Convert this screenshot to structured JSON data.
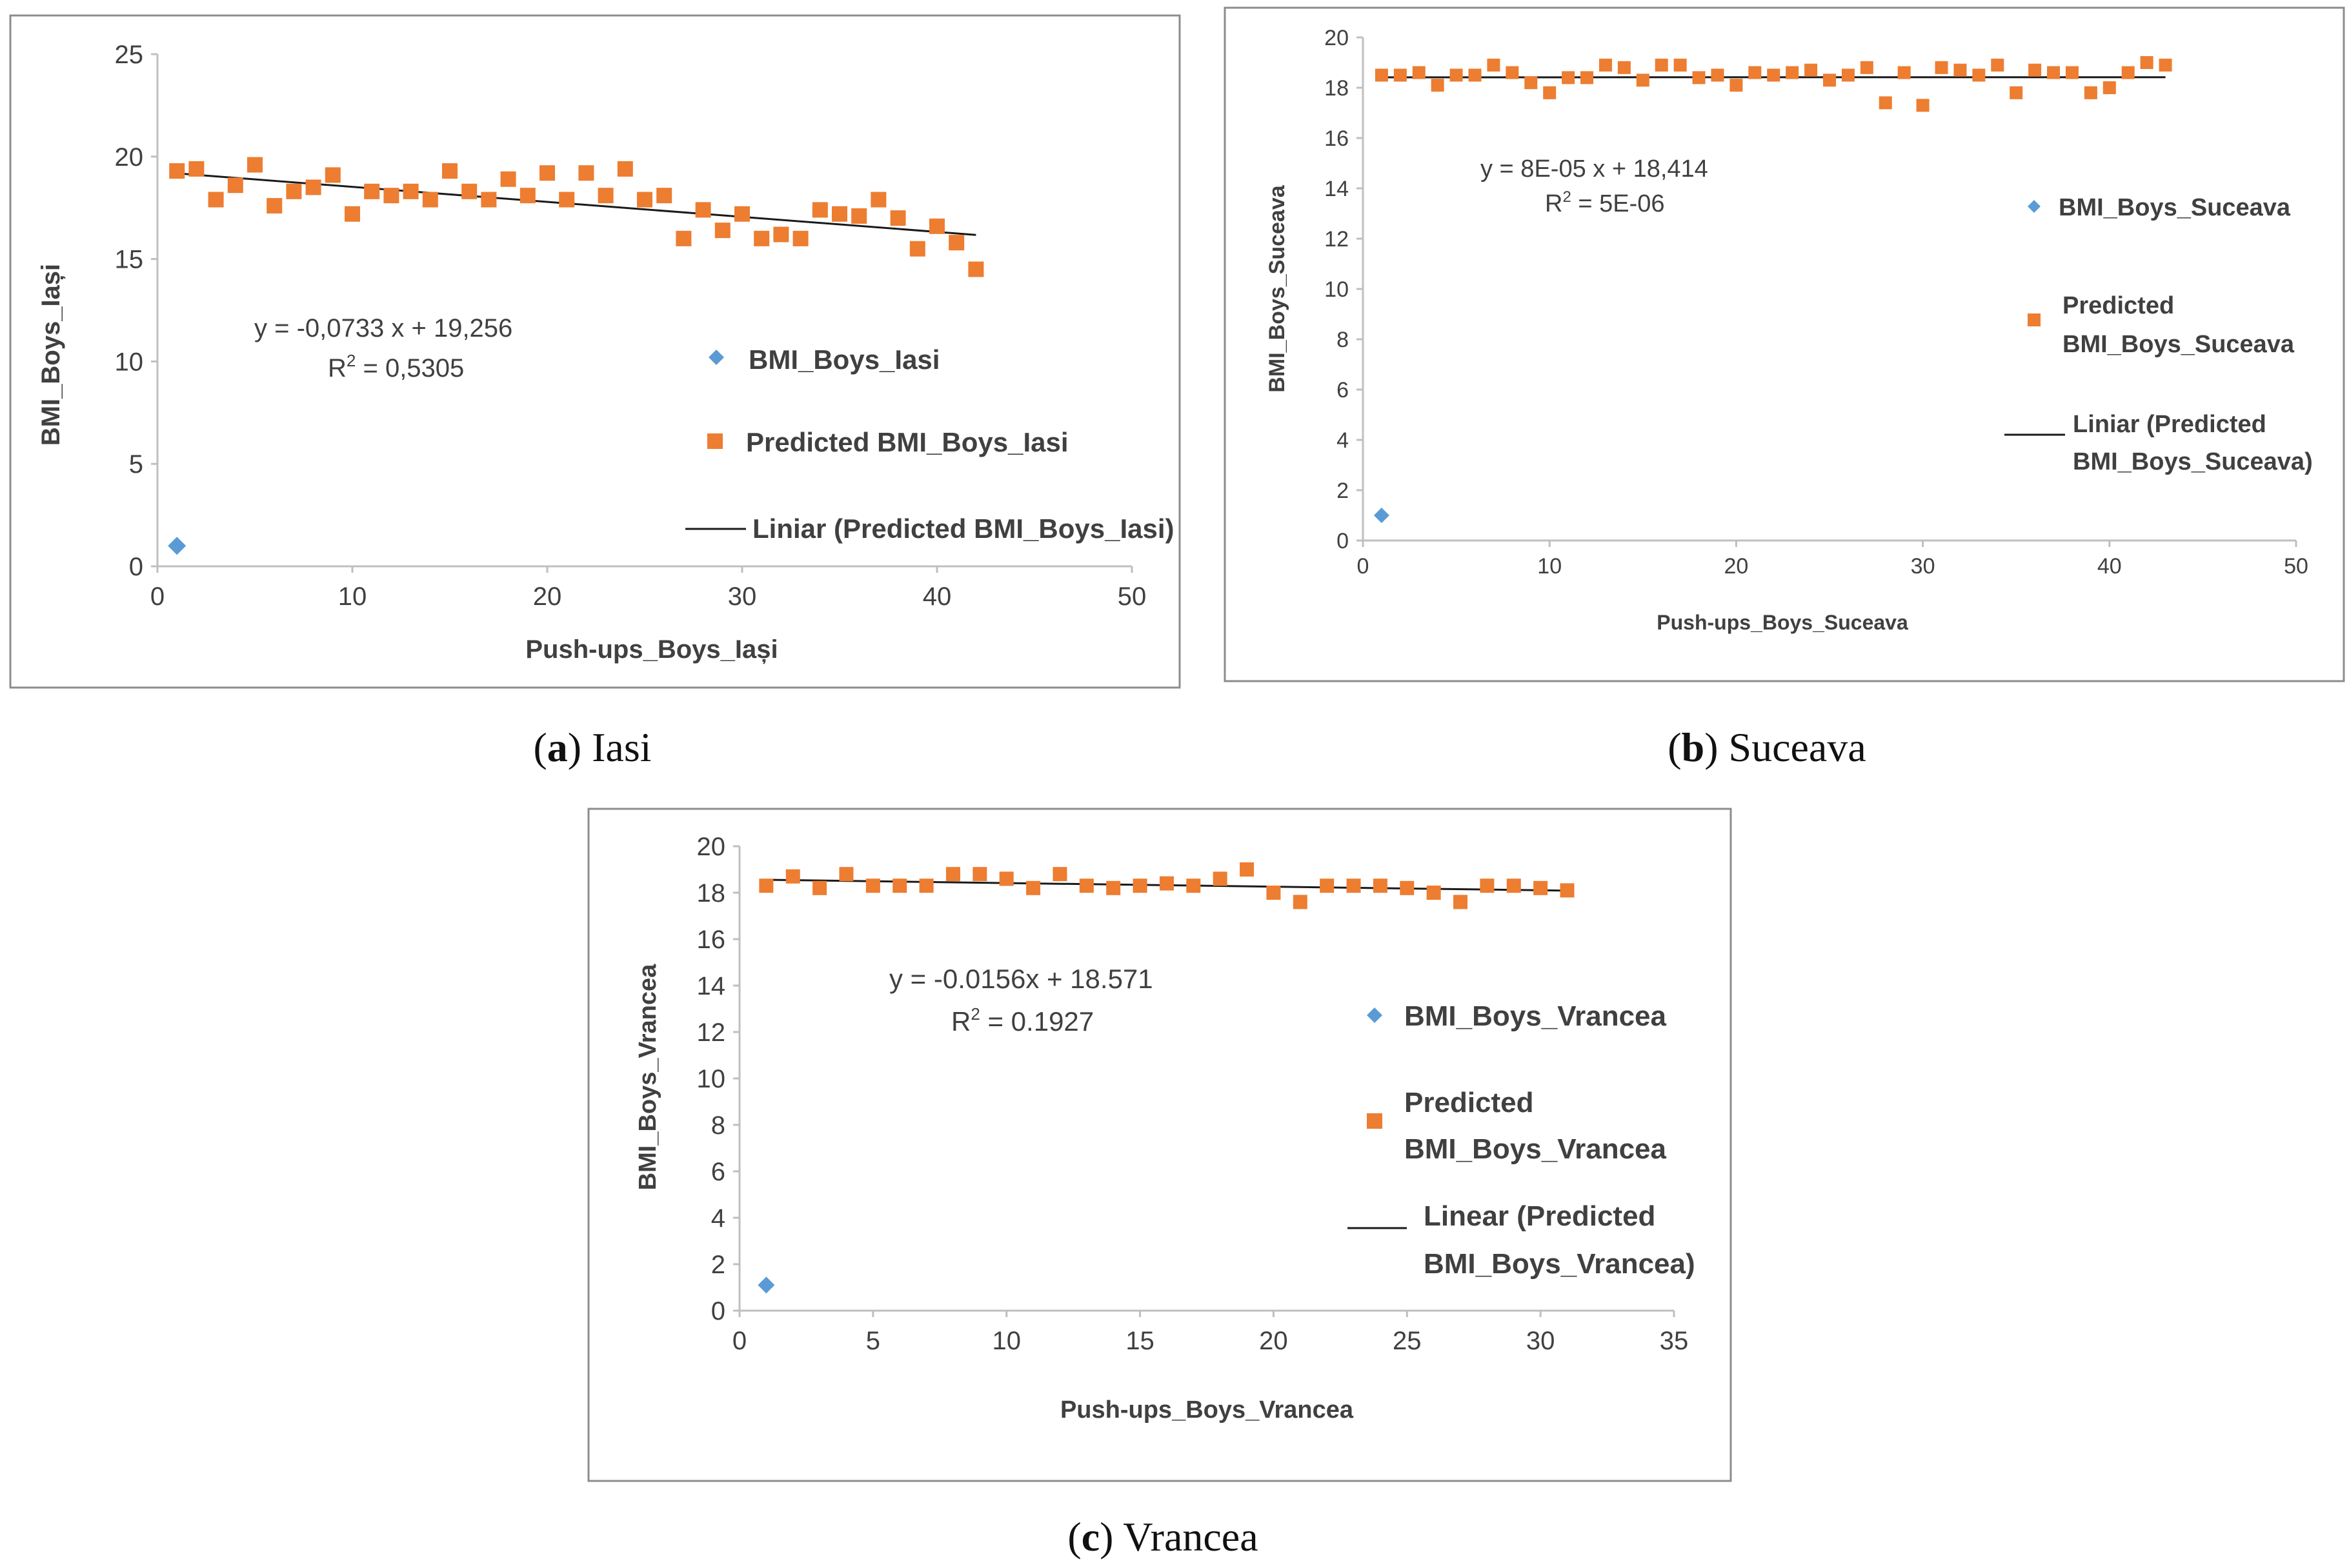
{
  "colors": {
    "observed": "#5b9bd5",
    "predicted": "#ed7d31",
    "trend": "#1a1a1a",
    "axis": "#bfbfbf",
    "frame": "#8c8c8c",
    "text": "#404040"
  },
  "chart_data": [
    {
      "type": "scatter",
      "panel": "a",
      "caption_letter": "a",
      "caption_text": "Iasi",
      "xlabel": "Push-ups_Boys_Iași",
      "ylabel": "BMI_Boys_Iași",
      "xlim": [
        0,
        50
      ],
      "ylim": [
        0,
        25
      ],
      "xticks": [
        0,
        10,
        20,
        30,
        40,
        50
      ],
      "yticks": [
        0,
        5,
        10,
        15,
        20,
        25
      ],
      "equation": "y = -0,0733  x + 19,256",
      "r2_prefix": "R",
      "r2_value": " = 0,5305",
      "trend": {
        "slope": -0.0733,
        "intercept": 19.256,
        "x_range": [
          1,
          42
        ]
      },
      "series": [
        {
          "name": "BMI_Boys_Iasi",
          "marker": "diamond",
          "points": [
            [
              1,
              1.0
            ]
          ]
        },
        {
          "name": "Predicted BMI_Boys_Iasi",
          "marker": "square",
          "points": [
            [
              1,
              19.3
            ],
            [
              2,
              19.4
            ],
            [
              3,
              17.9
            ],
            [
              4,
              18.6
            ],
            [
              5,
              19.6
            ],
            [
              6,
              17.6
            ],
            [
              7,
              18.3
            ],
            [
              8,
              18.5
            ],
            [
              9,
              19.1
            ],
            [
              10,
              17.2
            ],
            [
              11,
              18.3
            ],
            [
              12,
              18.1
            ],
            [
              13,
              18.3
            ],
            [
              14,
              17.9
            ],
            [
              15,
              19.3
            ],
            [
              16,
              18.3
            ],
            [
              17,
              17.9
            ],
            [
              18,
              18.9
            ],
            [
              19,
              18.1
            ],
            [
              20,
              19.2
            ],
            [
              21,
              17.9
            ],
            [
              22,
              19.2
            ],
            [
              23,
              18.1
            ],
            [
              24,
              19.4
            ],
            [
              25,
              17.9
            ],
            [
              26,
              18.1
            ],
            [
              27,
              16.0
            ],
            [
              28,
              17.4
            ],
            [
              29,
              16.4
            ],
            [
              30,
              17.2
            ],
            [
              31,
              16.0
            ],
            [
              32,
              16.2
            ],
            [
              33,
              16.0
            ],
            [
              34,
              17.4
            ],
            [
              35,
              17.2
            ],
            [
              36,
              17.1
            ],
            [
              37,
              17.9
            ],
            [
              38,
              17.0
            ],
            [
              39,
              15.5
            ],
            [
              40,
              16.6
            ],
            [
              41,
              15.8
            ],
            [
              42,
              14.5
            ]
          ]
        }
      ],
      "legend": {
        "observed": "BMI_Boys_Iasi",
        "predicted": "Predicted BMI_Boys_Iasi",
        "trend": "Liniar (Predicted BMI_Boys_Iasi)"
      }
    },
    {
      "type": "scatter",
      "panel": "b",
      "caption_letter": "b",
      "caption_text": "Suceava",
      "xlabel": "Push-ups_Boys_Suceava",
      "ylabel": "BMI_Boys_Suceava",
      "xlim": [
        0,
        50
      ],
      "ylim": [
        0,
        20
      ],
      "xticks": [
        0,
        10,
        20,
        30,
        40,
        50
      ],
      "yticks": [
        0,
        2,
        4,
        6,
        8,
        10,
        12,
        14,
        16,
        18,
        20
      ],
      "equation": "y = 8E-05  x + 18,414",
      "r2_prefix": "R",
      "r2_value": " = 5E-06",
      "trend": {
        "slope": 8e-05,
        "intercept": 18.414,
        "x_range": [
          1,
          43
        ]
      },
      "series": [
        {
          "name": "BMI_Boys_Suceava",
          "marker": "diamond",
          "points": [
            [
              1,
              1.0
            ]
          ]
        },
        {
          "name": "Predicted BMI_Boys_Suceava",
          "marker": "square",
          "points": [
            [
              1,
              18.5
            ],
            [
              2,
              18.5
            ],
            [
              3,
              18.6
            ],
            [
              4,
              18.1
            ],
            [
              5,
              18.5
            ],
            [
              6,
              18.5
            ],
            [
              7,
              18.9
            ],
            [
              8,
              18.6
            ],
            [
              9,
              18.2
            ],
            [
              10,
              17.8
            ],
            [
              11,
              18.4
            ],
            [
              12,
              18.4
            ],
            [
              13,
              18.9
            ],
            [
              14,
              18.8
            ],
            [
              15,
              18.3
            ],
            [
              16,
              18.9
            ],
            [
              17,
              18.9
            ],
            [
              18,
              18.4
            ],
            [
              19,
              18.5
            ],
            [
              20,
              18.1
            ],
            [
              21,
              18.6
            ],
            [
              22,
              18.5
            ],
            [
              23,
              18.6
            ],
            [
              24,
              18.7
            ],
            [
              25,
              18.3
            ],
            [
              26,
              18.5
            ],
            [
              27,
              18.8
            ],
            [
              28,
              17.4
            ],
            [
              29,
              18.6
            ],
            [
              30,
              17.3
            ],
            [
              31,
              18.8
            ],
            [
              32,
              18.7
            ],
            [
              33,
              18.5
            ],
            [
              34,
              18.9
            ],
            [
              35,
              17.8
            ],
            [
              36,
              18.7
            ],
            [
              37,
              18.6
            ],
            [
              38,
              18.6
            ],
            [
              39,
              17.8
            ],
            [
              40,
              18.0
            ],
            [
              41,
              18.6
            ],
            [
              42,
              19.0
            ],
            [
              43,
              18.9
            ]
          ]
        }
      ],
      "legend": {
        "observed": "BMI_Boys_Suceava",
        "predicted_line1": "Predicted",
        "predicted_line2": "BMI_Boys_Suceava",
        "trend_line1": "Liniar (Predicted",
        "trend_line2": "BMI_Boys_Suceava)"
      }
    },
    {
      "type": "scatter",
      "panel": "c",
      "caption_letter": "c",
      "caption_text": "Vrancea",
      "xlabel": "Push-ups_Boys_Vrancea",
      "ylabel": "BMI_Boys_Vrancea",
      "xlim": [
        0,
        35
      ],
      "ylim": [
        0,
        20
      ],
      "xticks": [
        0,
        5,
        10,
        15,
        20,
        25,
        30,
        35
      ],
      "yticks": [
        0,
        2,
        4,
        6,
        8,
        10,
        12,
        14,
        16,
        18,
        20
      ],
      "equation": "y = -0.0156x + 18.571",
      "r2_prefix": "R",
      "r2_value": " = 0.1927",
      "trend": {
        "slope": -0.0156,
        "intercept": 18.571,
        "x_range": [
          1,
          31
        ]
      },
      "series": [
        {
          "name": "BMI_Boys_Vrancea",
          "marker": "diamond",
          "points": [
            [
              1,
              1.1
            ]
          ]
        },
        {
          "name": "Predicted BMI_Boys_Vrancea",
          "marker": "square",
          "points": [
            [
              1,
              18.3
            ],
            [
              2,
              18.7
            ],
            [
              3,
              18.2
            ],
            [
              4,
              18.8
            ],
            [
              5,
              18.3
            ],
            [
              6,
              18.3
            ],
            [
              7,
              18.3
            ],
            [
              8,
              18.8
            ],
            [
              9,
              18.8
            ],
            [
              10,
              18.6
            ],
            [
              11,
              18.2
            ],
            [
              12,
              18.8
            ],
            [
              13,
              18.3
            ],
            [
              14,
              18.2
            ],
            [
              15,
              18.3
            ],
            [
              16,
              18.4
            ],
            [
              17,
              18.3
            ],
            [
              18,
              18.6
            ],
            [
              19,
              19.0
            ],
            [
              20,
              18.0
            ],
            [
              21,
              17.6
            ],
            [
              22,
              18.3
            ],
            [
              23,
              18.3
            ],
            [
              24,
              18.3
            ],
            [
              25,
              18.2
            ],
            [
              26,
              18.0
            ],
            [
              27,
              17.6
            ],
            [
              28,
              18.3
            ],
            [
              29,
              18.3
            ],
            [
              30,
              18.2
            ],
            [
              31,
              18.1
            ]
          ]
        }
      ],
      "legend": {
        "observed": "BMI_Boys_Vrancea",
        "predicted_line1": "Predicted",
        "predicted_line2": "BMI_Boys_Vrancea",
        "trend_line1": "Linear (Predicted",
        "trend_line2": "BMI_Boys_Vrancea)"
      }
    }
  ]
}
